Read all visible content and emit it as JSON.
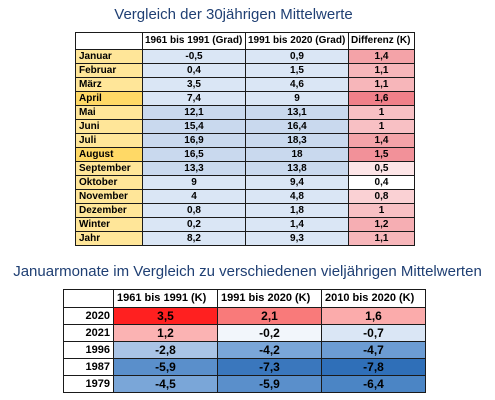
{
  "title1": "Vergleich der 30jährigen Mittelwerte",
  "table1": {
    "headers": [
      "",
      "1961 bis 1991 (Grad)",
      "1991 bis 2020 (Grad)",
      "Differenz (K)"
    ],
    "rows": [
      {
        "label": "Januar",
        "a": "-0,5",
        "b": "0,9",
        "d": "1,4",
        "lc": "#ffe699",
        "ac": "#dae6f5",
        "bc": "#dae6f5",
        "dc": "#f4a3a8"
      },
      {
        "label": "Februar",
        "a": "0,4",
        "b": "1,5",
        "d": "1,1",
        "lc": "#ffe699",
        "ac": "#dae6f5",
        "bc": "#dae6f5",
        "dc": "#f7b6ba"
      },
      {
        "label": "März",
        "a": "3,5",
        "b": "4,6",
        "d": "1,1",
        "lc": "#ffe699",
        "ac": "#dae6f5",
        "bc": "#dae6f5",
        "dc": "#f7b6ba"
      },
      {
        "label": "April",
        "a": "7,4",
        "b": "9",
        "d": "1,6",
        "lc": "#ffd966",
        "ac": "#dae6f5",
        "bc": "#dae6f5",
        "dc": "#f08089"
      },
      {
        "label": "Mai",
        "a": "12,1",
        "b": "13,1",
        "d": "1",
        "lc": "#ffe699",
        "ac": "#c9d9ee",
        "bc": "#c9d9ee",
        "dc": "#f8c0c4"
      },
      {
        "label": "Juni",
        "a": "15,4",
        "b": "16,4",
        "d": "1",
        "lc": "#ffe699",
        "ac": "#c9d9ee",
        "bc": "#c9d9ee",
        "dc": "#f8c0c4"
      },
      {
        "label": "Juli",
        "a": "16,9",
        "b": "18,3",
        "d": "1,4",
        "lc": "#ffe699",
        "ac": "#c9d9ee",
        "bc": "#c9d9ee",
        "dc": "#f4a3a8"
      },
      {
        "label": "August",
        "a": "16,5",
        "b": "18",
        "d": "1,5",
        "lc": "#ffd966",
        "ac": "#c9d9ee",
        "bc": "#c9d9ee",
        "dc": "#f29199"
      },
      {
        "label": "September",
        "a": "13,3",
        "b": "13,8",
        "d": "0,5",
        "lc": "#ffe699",
        "ac": "#c9d9ee",
        "bc": "#c9d9ee",
        "dc": "#fde5e7"
      },
      {
        "label": "Oktober",
        "a": "9",
        "b": "9,4",
        "d": "0,4",
        "lc": "#ffe699",
        "ac": "#dae6f5",
        "bc": "#dae6f5",
        "dc": "#ffffff"
      },
      {
        "label": "November",
        "a": "4",
        "b": "4,8",
        "d": "0,8",
        "lc": "#ffe699",
        "ac": "#dae6f5",
        "bc": "#dae6f5",
        "dc": "#fad1d4"
      },
      {
        "label": "Dezember",
        "a": "0,8",
        "b": "1,8",
        "d": "1",
        "lc": "#ffe699",
        "ac": "#dae6f5",
        "bc": "#dae6f5",
        "dc": "#f8c0c4"
      },
      {
        "label": "Winter",
        "a": "0,2",
        "b": "1,4",
        "d": "1,2",
        "lc": "#ffe699",
        "ac": "#dae6f5",
        "bc": "#dae6f5",
        "dc": "#f6aeb3"
      },
      {
        "label": "Jahr",
        "a": "8,2",
        "b": "9,3",
        "d": "1,1",
        "lc": "#ffe699",
        "ac": "#dae6f5",
        "bc": "#dae6f5",
        "dc": "#f7b6ba"
      }
    ]
  },
  "title2": "Januarmonate im Vergleich zu verschiedenen vieljährigen Mittelwerten",
  "table2": {
    "headers": [
      "",
      "1961 bis 1991 (K)",
      "1991 bis 2020 (K)",
      "2010 bis 2020 (K)"
    ],
    "rows": [
      {
        "year": "2020",
        "v": [
          "3,5",
          "2,1",
          "1,6"
        ],
        "c": [
          "#ff2020",
          "#f97a7a",
          "#fbabab"
        ]
      },
      {
        "year": "2021",
        "v": [
          "1,2",
          "-0,2",
          "-0,7"
        ],
        "c": [
          "#fbb3b3",
          "#f2f6fb",
          "#dae6f5"
        ]
      },
      {
        "year": "1996",
        "v": [
          "-2,8",
          "-4,2",
          "-4,7"
        ],
        "c": [
          "#a9c4e6",
          "#7aa6d8",
          "#6c9cd3"
        ]
      },
      {
        "year": "1987",
        "v": [
          "-5,9",
          "-7,3",
          "-7,8"
        ],
        "c": [
          "#5a8fcb",
          "#3a77bd",
          "#2f6fb8"
        ]
      },
      {
        "year": "1979",
        "v": [
          "-4,5",
          "-5,9",
          "-6,4"
        ],
        "c": [
          "#7aa6d8",
          "#5a8fcb",
          "#4b85c5"
        ]
      }
    ]
  }
}
